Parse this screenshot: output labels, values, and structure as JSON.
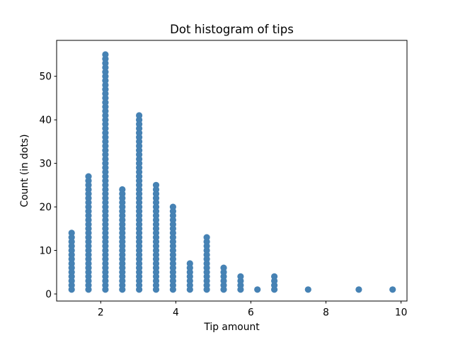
{
  "chart_data": {
    "type": "scatter",
    "subtype": "dot-histogram",
    "title": "Dot histogram of tips",
    "xlabel": "Tip amount",
    "ylabel": "Count (in dots)",
    "bin_width": 0.45,
    "bin_centers": [
      1.225,
      1.675,
      2.125,
      2.575,
      3.025,
      3.475,
      3.925,
      4.375,
      4.825,
      5.275,
      5.725,
      6.175,
      6.625,
      7.525,
      8.875,
      9.775
    ],
    "counts": [
      14,
      27,
      55,
      24,
      41,
      25,
      20,
      7,
      13,
      6,
      4,
      1,
      4,
      1,
      1,
      1
    ],
    "total_dots": 244,
    "xticks": [
      2,
      4,
      6,
      8,
      10
    ],
    "yticks": [
      0,
      10,
      20,
      30,
      40,
      50
    ],
    "xlim": [
      0.826,
      10.158
    ],
    "ylim": [
      -1.63,
      58.25
    ],
    "dot_color": "#4682B4",
    "dot_radius_px": 4.6,
    "spine_color": "#000000",
    "background_color": "#ffffff",
    "grid": false,
    "legend": false
  }
}
